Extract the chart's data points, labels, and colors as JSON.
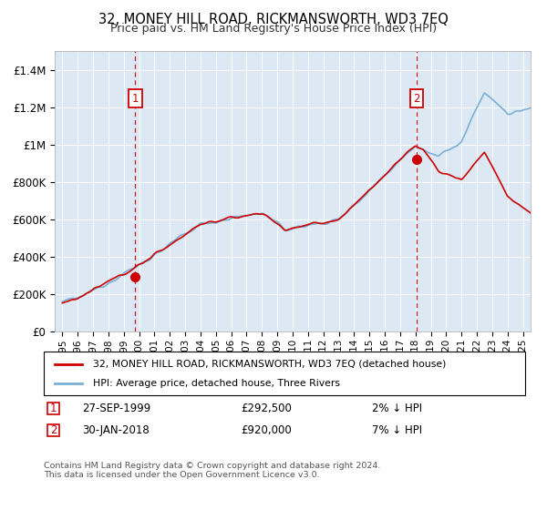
{
  "title": "32, MONEY HILL ROAD, RICKMANSWORTH, WD3 7EQ",
  "subtitle": "Price paid vs. HM Land Registry's House Price Index (HPI)",
  "legend_line1": "32, MONEY HILL ROAD, RICKMANSWORTH, WD3 7EQ (detached house)",
  "legend_line2": "HPI: Average price, detached house, Three Rivers",
  "annotation1_date": "27-SEP-1999",
  "annotation1_price": "£292,500",
  "annotation1_hpi": "2% ↓ HPI",
  "annotation2_date": "30-JAN-2018",
  "annotation2_price": "£920,000",
  "annotation2_hpi": "7% ↓ HPI",
  "sale1_x": 1999.75,
  "sale1_y": 292500,
  "sale2_x": 2018.08,
  "sale2_y": 920000,
  "footer": "Contains HM Land Registry data © Crown copyright and database right 2024.\nThis data is licensed under the Open Government Licence v3.0.",
  "ylim": [
    0,
    1500000
  ],
  "xlim": [
    1994.5,
    2025.5
  ],
  "yticks": [
    0,
    200000,
    400000,
    600000,
    800000,
    1000000,
    1200000,
    1400000
  ],
  "ytick_labels": [
    "£0",
    "£200K",
    "£400K",
    "£600K",
    "£800K",
    "£1M",
    "£1.2M",
    "£1.4M"
  ],
  "xticks": [
    1995,
    1996,
    1997,
    1998,
    1999,
    2000,
    2001,
    2002,
    2003,
    2004,
    2005,
    2006,
    2007,
    2008,
    2009,
    2010,
    2011,
    2012,
    2013,
    2014,
    2015,
    2016,
    2017,
    2018,
    2019,
    2020,
    2021,
    2022,
    2023,
    2024,
    2025
  ],
  "hpi_color": "#7bafd4",
  "price_color": "#cc0000",
  "vline_color": "#cc0000",
  "chart_bg": "#dce9f5",
  "background_color": "#ffffff",
  "grid_color": "#ffffff"
}
